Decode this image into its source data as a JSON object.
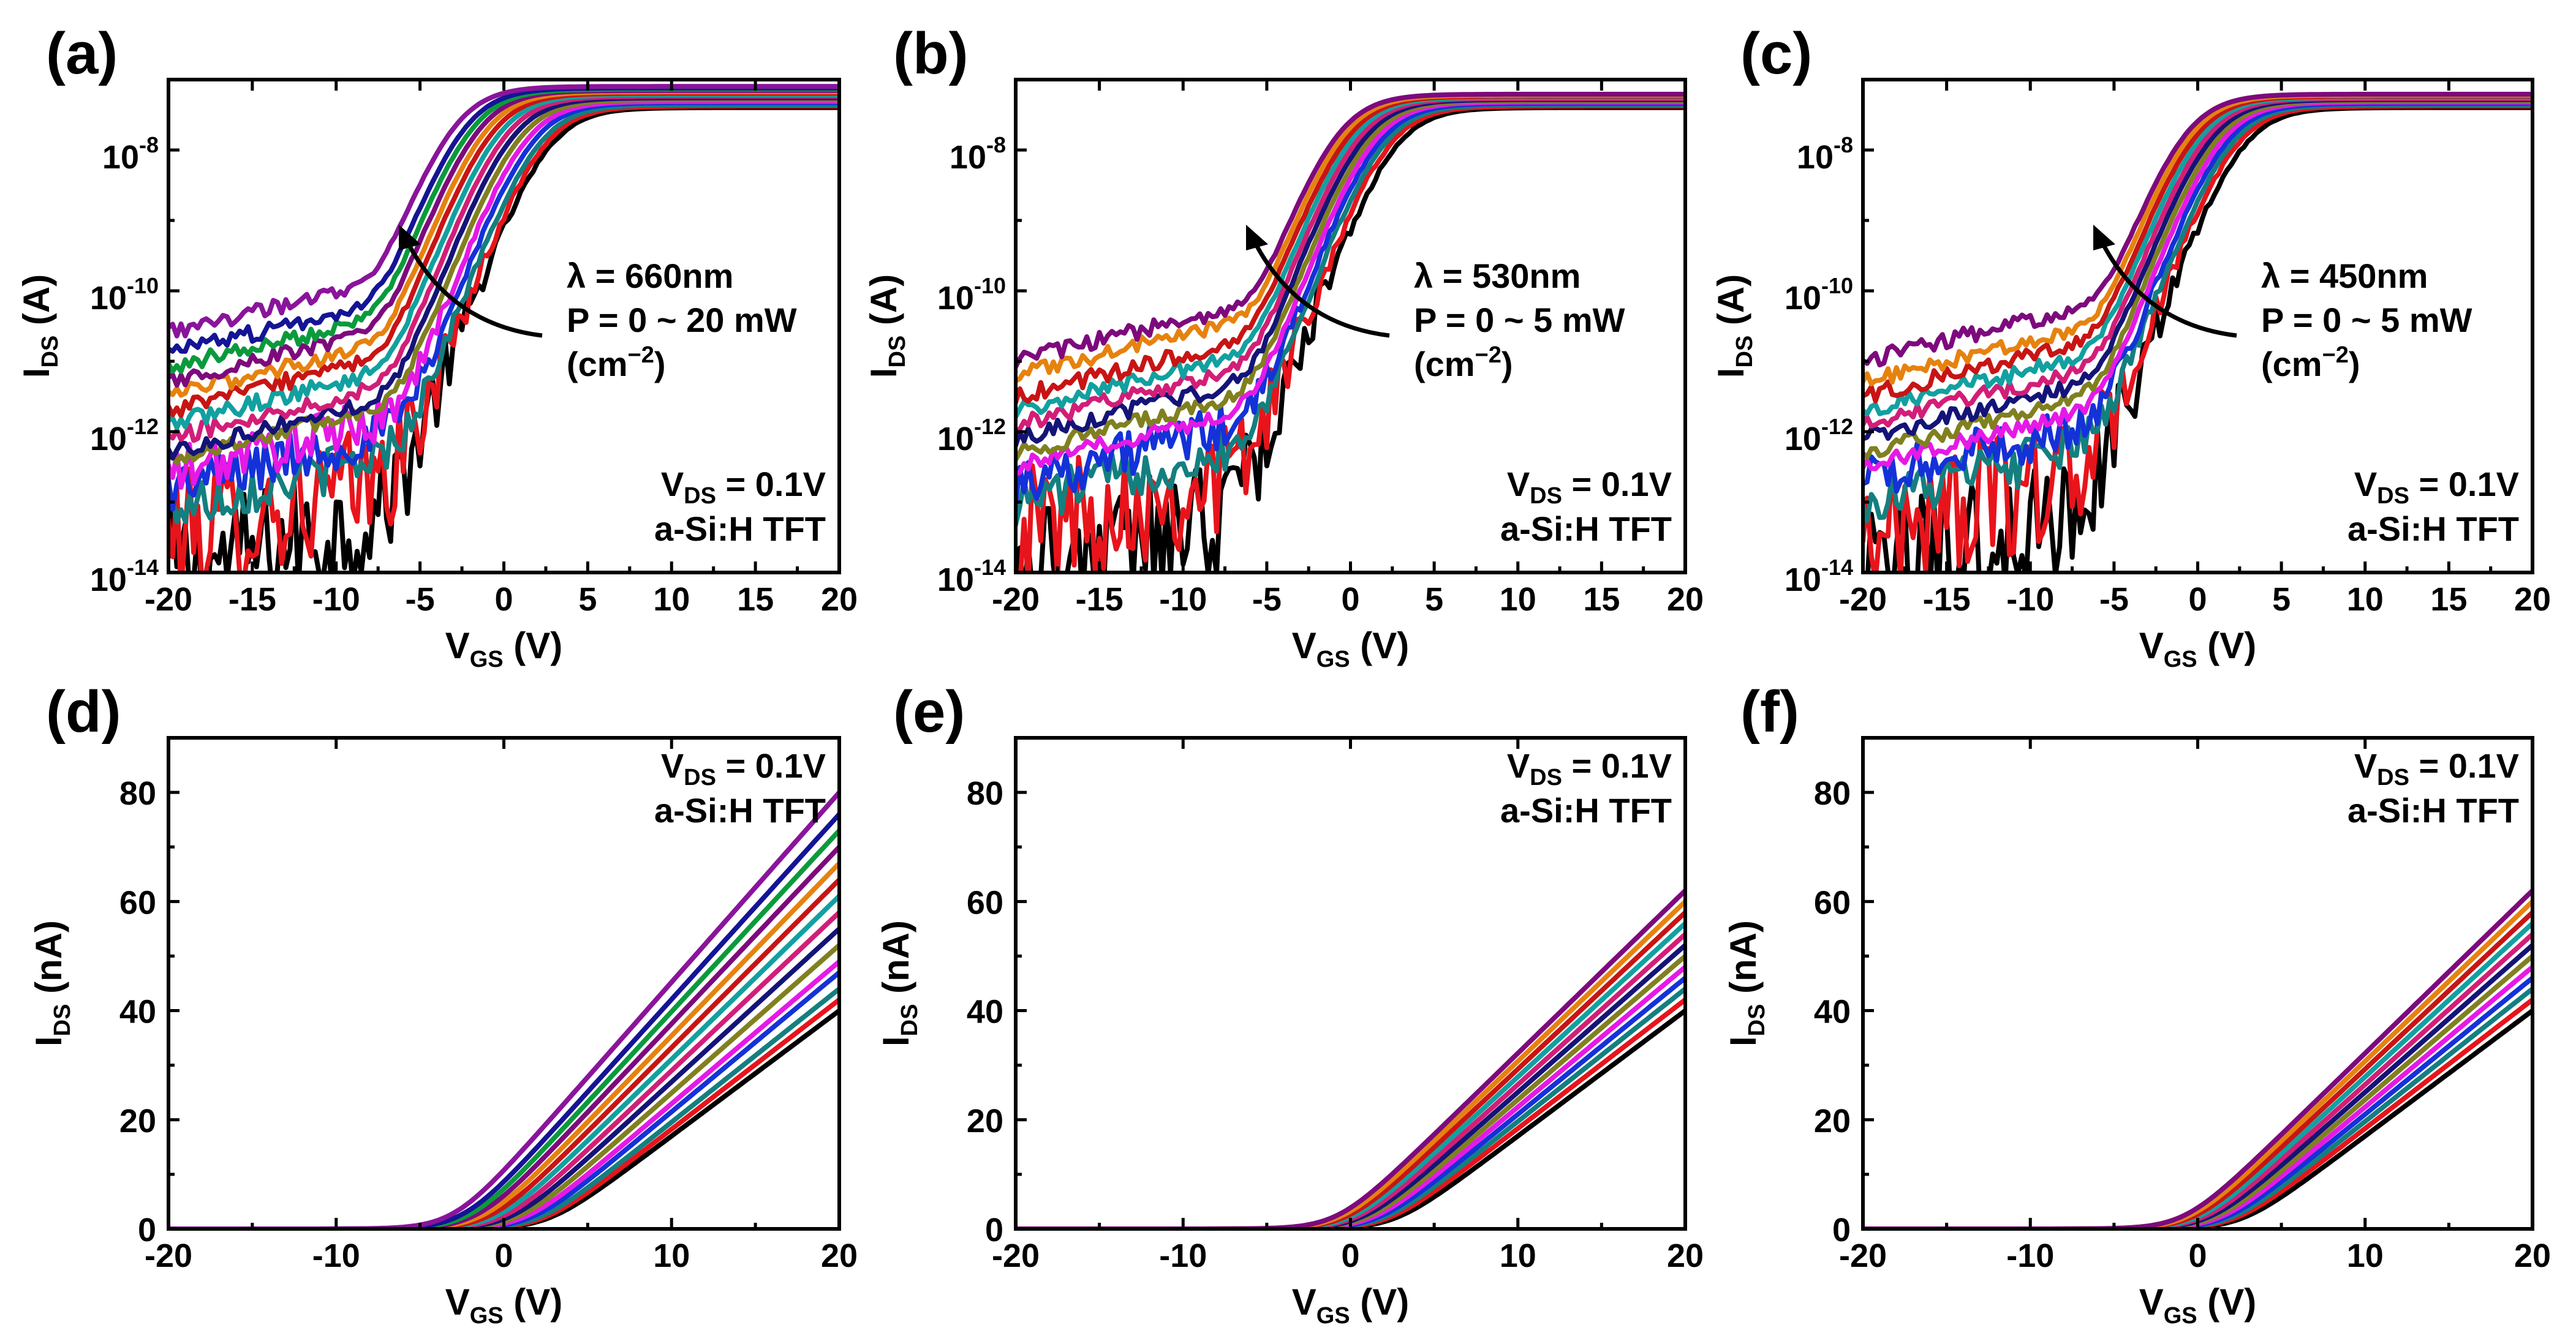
{
  "colors": [
    "#000000",
    "#e8141b",
    "#1a8c8c",
    "#1432d8",
    "#e61ee6",
    "#7d7d1e",
    "#14147d",
    "#ffffff",
    "#1e1e96",
    "#d21e78",
    "#00a0a0",
    "#000000",
    "#e6820f",
    "#7d0a7d",
    "#0aa040",
    "#141496",
    "#d2141e",
    "#1e9696",
    "#96149b"
  ],
  "palette": [
    "#000000",
    "#e8141b",
    "#147f7f",
    "#1432d8",
    "#e619e6",
    "#808020",
    "#141478",
    "#d21e78",
    "#12a0a0",
    "#c81414",
    "#e6820f",
    "#7d0a7d",
    "#0a9a3c",
    "#141496",
    "#8a149b"
  ],
  "panels": [
    {
      "id": "a",
      "label": "(a)",
      "kind": "log",
      "x_label_main": "V",
      "x_label_sub": "GS",
      "x_label_unit": "(V)",
      "y_label_main": "I",
      "y_label_sub": "DS",
      "y_label_unit": "(A)",
      "x_ticks": [
        "-20",
        "-15",
        "-10",
        "-5",
        "0",
        "5",
        "10",
        "15",
        "20"
      ],
      "y_ticks_base": "10",
      "y_ticks_exp": [
        "-14",
        "-12",
        "-10",
        "-8"
      ],
      "lambda_label": "λ = 660nm",
      "power_label": "P = 0 ~ 20 mW",
      "unit_label": "(cm",
      "unit_exp": "−2",
      "unit_close": ")",
      "vds_main": "V",
      "vds_sub": "DS",
      "vds_value": " = 0.1V",
      "device": "a-Si:H TFT"
    },
    {
      "id": "b",
      "label": "(b)",
      "kind": "log",
      "x_label_main": "V",
      "x_label_sub": "GS",
      "x_label_unit": "(V)",
      "y_label_main": "I",
      "y_label_sub": "DS",
      "y_label_unit": "(A)",
      "x_ticks": [
        "-20",
        "-15",
        "-10",
        "-5",
        "0",
        "5",
        "10",
        "15",
        "20"
      ],
      "y_ticks_base": "10",
      "y_ticks_exp": [
        "-14",
        "-12",
        "-10",
        "-8"
      ],
      "lambda_label": "λ = 530nm",
      "power_label": "P = 0 ~ 5 mW",
      "unit_label": "(cm",
      "unit_exp": "−2",
      "unit_close": ")",
      "vds_main": "V",
      "vds_sub": "DS",
      "vds_value": " = 0.1V",
      "device": "a-Si:H TFT"
    },
    {
      "id": "c",
      "label": "(c)",
      "kind": "log",
      "x_label_main": "V",
      "x_label_sub": "GS",
      "x_label_unit": "(V)",
      "y_label_main": "I",
      "y_label_sub": "DS",
      "y_label_unit": "(A)",
      "x_ticks": [
        "-20",
        "-15",
        "-10",
        "-5",
        "0",
        "5",
        "10",
        "15",
        "20"
      ],
      "y_ticks_base": "10",
      "y_ticks_exp": [
        "-14",
        "-12",
        "-10",
        "-8"
      ],
      "lambda_label": "λ = 450nm",
      "power_label": "P = 0 ~ 5 mW",
      "unit_label": "(cm",
      "unit_exp": "−2",
      "unit_close": ")",
      "vds_main": "V",
      "vds_sub": "DS",
      "vds_value": " = 0.1V",
      "device": "a-Si:H TFT"
    },
    {
      "id": "d",
      "label": "(d)",
      "kind": "linear",
      "x_label_main": "V",
      "x_label_sub": "GS",
      "x_label_unit": "(V)",
      "y_label_main": "I",
      "y_label_sub": "DS",
      "y_label_unit": "(nA)",
      "x_ticks": [
        "-20",
        "-10",
        "0",
        "10",
        "20"
      ],
      "y_ticks": [
        "0",
        "20",
        "40",
        "60",
        "80"
      ],
      "vds_main": "V",
      "vds_sub": "DS",
      "vds_value": " = 0.1V",
      "device": "a-Si:H TFT"
    },
    {
      "id": "e",
      "label": "(e)",
      "kind": "linear",
      "x_label_main": "V",
      "x_label_sub": "GS",
      "x_label_unit": "(V)",
      "y_label_main": "I",
      "y_label_sub": "DS",
      "y_label_unit": "(nA)",
      "x_ticks": [
        "-20",
        "-10",
        "0",
        "10",
        "20"
      ],
      "y_ticks": [
        "0",
        "20",
        "40",
        "60",
        "80"
      ],
      "vds_main": "V",
      "vds_sub": "DS",
      "vds_value": " = 0.1V",
      "device": "a-Si:H TFT"
    },
    {
      "id": "f",
      "label": "(f)",
      "kind": "linear",
      "x_label_main": "V",
      "x_label_sub": "GS",
      "x_label_unit": "(V)",
      "y_label_main": "I",
      "y_label_sub": "DS",
      "y_label_unit": "(nA)",
      "x_ticks": [
        "-20",
        "-10",
        "0",
        "10",
        "20"
      ],
      "y_ticks": [
        "0",
        "20",
        "40",
        "60",
        "80"
      ],
      "vds_main": "V",
      "vds_sub": "DS",
      "vds_value": " = 0.1V",
      "device": "a-Si:H TFT"
    }
  ],
  "chart_data": [
    {
      "panel": "a",
      "type": "line",
      "yscale": "log",
      "xlabel": "VGS (V)",
      "ylabel": "IDS (A)",
      "xlim": [
        -20,
        20
      ],
      "ylim": [
        1e-14,
        1e-07
      ],
      "annotation": "λ = 660nm, P = 0 ~ 20 mW (cm−2), VDS = 0.1V, a-Si:H TFT",
      "series_params": {
        "vth": [
          2.6,
          2.3,
          2.0,
          1.6,
          1.2,
          0.8,
          0.4,
          0.0,
          -0.4,
          -0.8,
          -1.2,
          -1.6,
          -2.0,
          -2.4,
          -3.0
        ],
        "off_current_log10": [
          -14.0,
          -13.5,
          -13.1,
          -12.8,
          -12.6,
          -12.4,
          -12.3,
          -12.1,
          -11.9,
          -11.7,
          -11.5,
          -11.3,
          -11.1,
          -10.9,
          -10.6
        ],
        "ion_at_20V_A": [
          4e-08,
          4.2e-08,
          4.4e-08,
          4.7e-08,
          4.9e-08,
          5.2e-08,
          5.5e-08,
          5.8e-08,
          6.1e-08,
          6.4e-08,
          6.7e-08,
          7e-08,
          7.3e-08,
          7.6e-08,
          8e-08
        ]
      }
    },
    {
      "panel": "b",
      "type": "line",
      "yscale": "log",
      "xlabel": "VGS (V)",
      "ylabel": "IDS (A)",
      "xlim": [
        -20,
        20
      ],
      "ylim": [
        1e-14,
        1e-07
      ],
      "annotation": "λ = 530nm, P = 0 ~ 5 mW (cm−2), VDS = 0.1V, a-Si:H TFT",
      "series_params": {
        "vth": [
          2.6,
          2.2,
          1.9,
          1.6,
          1.3,
          1.0,
          0.7,
          0.4,
          0.1,
          -0.2,
          -0.5,
          -0.8
        ],
        "off_current_log10": [
          -14.0,
          -13.4,
          -13.0,
          -12.7,
          -12.5,
          -12.3,
          -12.1,
          -11.9,
          -11.7,
          -11.5,
          -11.2,
          -11.0
        ],
        "ion_at_20V_A": [
          4e-08,
          4.2e-08,
          4.4e-08,
          4.6e-08,
          4.8e-08,
          5e-08,
          5.2e-08,
          5.4e-08,
          5.6e-08,
          5.8e-08,
          6e-08,
          6.2e-08
        ]
      }
    },
    {
      "panel": "c",
      "type": "line",
      "yscale": "log",
      "xlabel": "VGS (V)",
      "ylabel": "IDS (A)",
      "xlim": [
        -20,
        20
      ],
      "ylim": [
        1e-14,
        1e-07
      ],
      "annotation": "λ = 450nm, P = 0 ~ 5 mW (cm−2), VDS = 0.1V, a-Si:H TFT",
      "series_params": {
        "vth": [
          2.6,
          2.2,
          1.9,
          1.6,
          1.3,
          1.0,
          0.7,
          0.4,
          0.1,
          -0.2,
          -0.5,
          -0.8
        ],
        "off_current_log10": [
          -14.0,
          -13.4,
          -13.0,
          -12.7,
          -12.5,
          -12.3,
          -12.1,
          -11.9,
          -11.7,
          -11.5,
          -11.3,
          -11.0
        ],
        "ion_at_20V_A": [
          4e-08,
          4.2e-08,
          4.4e-08,
          4.6e-08,
          4.8e-08,
          5e-08,
          5.2e-08,
          5.4e-08,
          5.6e-08,
          5.8e-08,
          6e-08,
          6.2e-08
        ]
      }
    },
    {
      "panel": "d",
      "type": "line",
      "yscale": "linear",
      "xlabel": "VGS (V)",
      "ylabel": "IDS (nA)",
      "xlim": [
        -20,
        20
      ],
      "ylim": [
        0,
        90
      ],
      "annotation": "VDS = 0.1V, a-Si:H TFT",
      "series_params": {
        "vth": [
          2.6,
          2.3,
          2.0,
          1.6,
          1.2,
          0.8,
          0.4,
          0.0,
          -0.4,
          -0.8,
          -1.2,
          -1.6,
          -2.0,
          -2.4,
          -3.0
        ],
        "ion_at_20V_nA": [
          40,
          42,
          44,
          47,
          49,
          52,
          55,
          58,
          61,
          64,
          67,
          70,
          73,
          76,
          80
        ]
      }
    },
    {
      "panel": "e",
      "type": "line",
      "yscale": "linear",
      "xlabel": "VGS (V)",
      "ylabel": "IDS (nA)",
      "xlim": [
        -20,
        20
      ],
      "ylim": [
        0,
        90
      ],
      "annotation": "VDS = 0.1V, a-Si:H TFT",
      "series_params": {
        "vth": [
          2.6,
          2.2,
          1.9,
          1.6,
          1.3,
          1.0,
          0.7,
          0.4,
          0.1,
          -0.2,
          -0.5,
          -0.8
        ],
        "ion_at_20V_nA": [
          40,
          42,
          44,
          46,
          48,
          50,
          52,
          54,
          56,
          58,
          60,
          62
        ]
      }
    },
    {
      "panel": "f",
      "type": "line",
      "yscale": "linear",
      "xlabel": "VGS (V)",
      "ylabel": "IDS (nA)",
      "xlim": [
        -20,
        20
      ],
      "ylim": [
        0,
        90
      ],
      "annotation": "VDS = 0.1V, a-Si:H TFT",
      "series_params": {
        "vth": [
          2.6,
          2.2,
          1.9,
          1.6,
          1.3,
          1.0,
          0.7,
          0.4,
          0.1,
          -0.2,
          -0.5,
          -0.8
        ],
        "ion_at_20V_nA": [
          40,
          42,
          44,
          46,
          48,
          50,
          52,
          54,
          56,
          58,
          60,
          62
        ]
      }
    }
  ]
}
